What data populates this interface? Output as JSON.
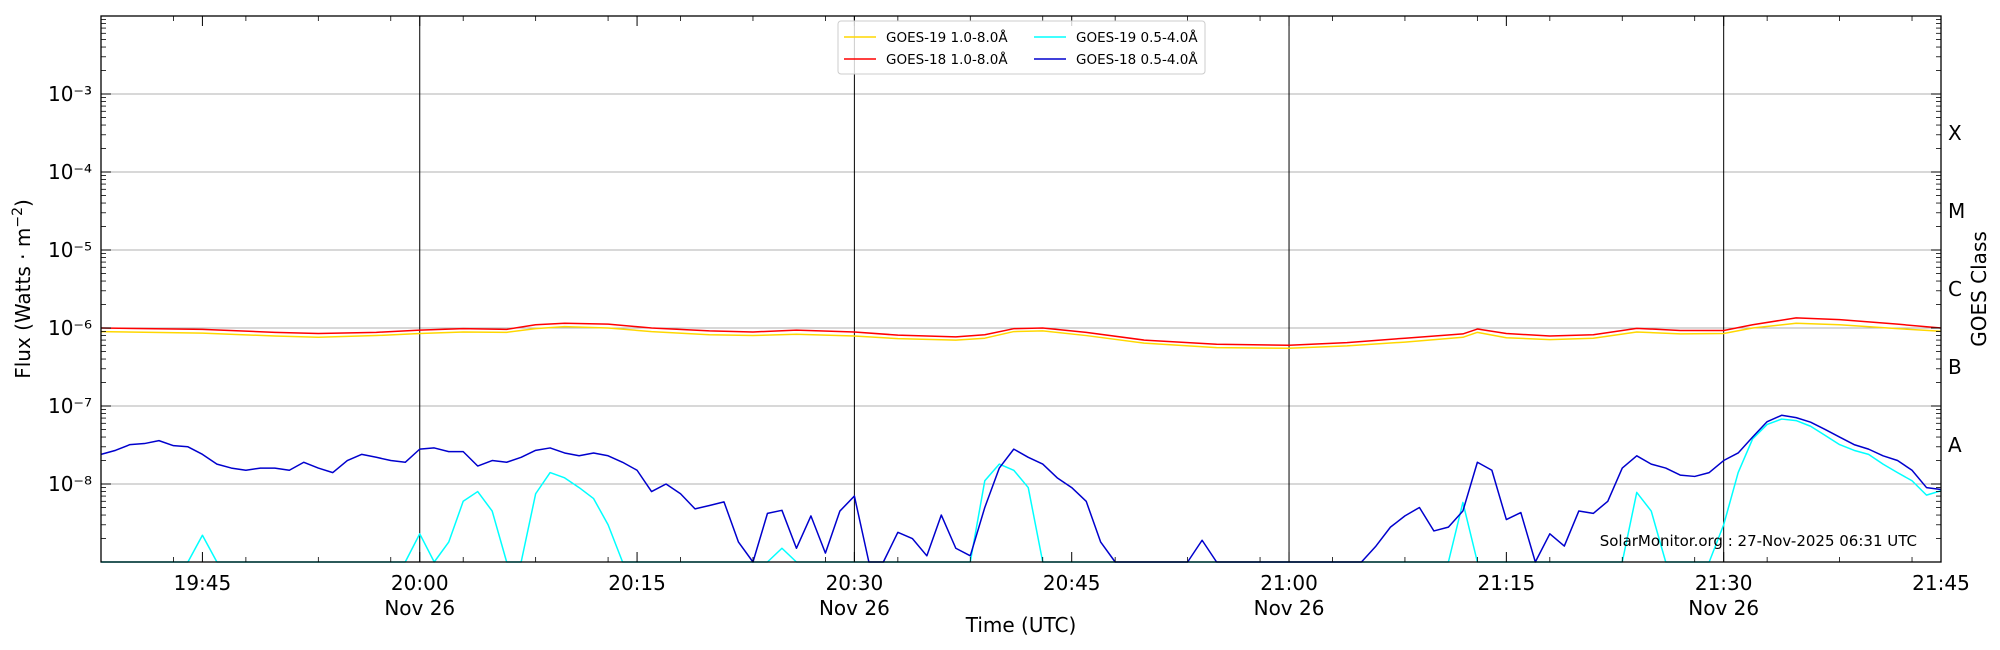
{
  "chart_data": {
    "type": "line",
    "ylabel": "Flux (Watts · m",
    "ylabel_sup": "−2",
    "ylabel_end": ")",
    "xlabel": "Time (UTC)",
    "right_label": "GOES Class",
    "yscale": "log",
    "ylim_exp": [
      -9,
      -2
    ],
    "ytick_exponents": [
      -8,
      -7,
      -6,
      -5,
      -4,
      -3
    ],
    "xlim_minutes": [
      "19:38",
      "21:45"
    ],
    "xticks": [
      {
        "t": "19:45",
        "label": "19:45",
        "date": ""
      },
      {
        "t": "20:00",
        "label": "20:00",
        "date": "Nov 26"
      },
      {
        "t": "20:15",
        "label": "20:15",
        "date": ""
      },
      {
        "t": "20:30",
        "label": "20:30",
        "date": "Nov 26"
      },
      {
        "t": "20:45",
        "label": "20:45",
        "date": ""
      },
      {
        "t": "21:00",
        "label": "21:00",
        "date": "Nov 26"
      },
      {
        "t": "21:15",
        "label": "21:15",
        "date": ""
      },
      {
        "t": "21:30",
        "label": "21:30",
        "date": "Nov 26"
      },
      {
        "t": "21:45",
        "label": "21:45",
        "date": ""
      }
    ],
    "vlines": [
      "20:00",
      "20:30",
      "21:00",
      "21:30"
    ],
    "grid": "horizontal",
    "goes_classes": [
      {
        "label": "A",
        "exp": -8
      },
      {
        "label": "B",
        "exp": -7
      },
      {
        "label": "C",
        "exp": -6
      },
      {
        "label": "M",
        "exp": -5
      },
      {
        "label": "X",
        "exp": -4
      }
    ],
    "legend_placement": "top-center",
    "legend_prefix": [
      "GOES-19 1.0-8.0",
      "GOES-18 1.0-8.0",
      "GOES-19 0.5-4.0",
      "GOES-18 0.5-4.0"
    ],
    "angstrom": "Å",
    "watermark": "SolarMonitor.org : 27-Nov-2025 06:31 UTC",
    "series": [
      {
        "name": "GOES-19 1.0-8.0Å",
        "color": "#ffd700",
        "points": [
          [
            "19:38",
            9e-07
          ],
          [
            "19:45",
            8.6e-07
          ],
          [
            "19:50",
            7.9e-07
          ],
          [
            "19:53",
            7.6e-07
          ],
          [
            "19:57",
            8e-07
          ],
          [
            "20:00",
            8.5e-07
          ],
          [
            "20:03",
            8.9e-07
          ],
          [
            "20:06",
            8.8e-07
          ],
          [
            "20:08",
            9.8e-07
          ],
          [
            "20:10",
            1.04e-06
          ],
          [
            "20:13",
            1e-06
          ],
          [
            "20:16",
            9e-07
          ],
          [
            "20:20",
            8.2e-07
          ],
          [
            "20:23",
            8e-07
          ],
          [
            "20:26",
            8.3e-07
          ],
          [
            "20:30",
            7.9e-07
          ],
          [
            "20:33",
            7.3e-07
          ],
          [
            "20:37",
            7e-07
          ],
          [
            "20:39",
            7.4e-07
          ],
          [
            "20:41",
            9e-07
          ],
          [
            "20:43",
            9.2e-07
          ],
          [
            "20:46",
            8e-07
          ],
          [
            "20:50",
            6.4e-07
          ],
          [
            "20:55",
            5.6e-07
          ],
          [
            "21:00",
            5.5e-07
          ],
          [
            "21:04",
            5.9e-07
          ],
          [
            "21:08",
            6.6e-07
          ],
          [
            "21:12",
            7.6e-07
          ],
          [
            "21:13",
            8.8e-07
          ],
          [
            "21:15",
            7.5e-07
          ],
          [
            "21:18",
            7.1e-07
          ],
          [
            "21:21",
            7.4e-07
          ],
          [
            "21:24",
            8.9e-07
          ],
          [
            "21:27",
            8.4e-07
          ],
          [
            "21:30",
            8.5e-07
          ],
          [
            "21:32",
            1e-06
          ],
          [
            "21:35",
            1.15e-06
          ],
          [
            "21:38",
            1.1e-06
          ],
          [
            "21:42",
            9.8e-07
          ],
          [
            "21:45",
            9.1e-07
          ]
        ]
      },
      {
        "name": "GOES-18 1.0-8.0Å",
        "color": "#ff0000",
        "points": [
          [
            "19:38",
            1e-06
          ],
          [
            "19:45",
            9.6e-07
          ],
          [
            "19:50",
            8.8e-07
          ],
          [
            "19:53",
            8.5e-07
          ],
          [
            "19:57",
            8.8e-07
          ],
          [
            "20:00",
            9.4e-07
          ],
          [
            "20:03",
            9.8e-07
          ],
          [
            "20:06",
            9.6e-07
          ],
          [
            "20:08",
            1.1e-06
          ],
          [
            "20:10",
            1.15e-06
          ],
          [
            "20:13",
            1.12e-06
          ],
          [
            "20:16",
            1e-06
          ],
          [
            "20:20",
            9.2e-07
          ],
          [
            "20:23",
            8.9e-07
          ],
          [
            "20:26",
            9.4e-07
          ],
          [
            "20:30",
            8.9e-07
          ],
          [
            "20:33",
            8.1e-07
          ],
          [
            "20:37",
            7.7e-07
          ],
          [
            "20:39",
            8.2e-07
          ],
          [
            "20:41",
            9.8e-07
          ],
          [
            "20:43",
            1e-06
          ],
          [
            "20:46",
            8.8e-07
          ],
          [
            "20:50",
            7e-07
          ],
          [
            "20:55",
            6.2e-07
          ],
          [
            "21:00",
            6e-07
          ],
          [
            "21:04",
            6.5e-07
          ],
          [
            "21:08",
            7.4e-07
          ],
          [
            "21:12",
            8.4e-07
          ],
          [
            "21:13",
            9.7e-07
          ],
          [
            "21:15",
            8.5e-07
          ],
          [
            "21:18",
            7.9e-07
          ],
          [
            "21:21",
            8.2e-07
          ],
          [
            "21:24",
            9.9e-07
          ],
          [
            "21:27",
            9.3e-07
          ],
          [
            "21:30",
            9.3e-07
          ],
          [
            "21:32",
            1.1e-06
          ],
          [
            "21:35",
            1.35e-06
          ],
          [
            "21:38",
            1.28e-06
          ],
          [
            "21:42",
            1.12e-06
          ],
          [
            "21:45",
            1e-06
          ]
        ]
      },
      {
        "name": "GOES-19 0.5-4.0Å",
        "color": "#00ffff",
        "points": [
          [
            "19:38",
            1e-09
          ],
          [
            "19:44",
            1e-09
          ],
          [
            "19:45",
            2.2e-09
          ],
          [
            "19:46",
            1e-09
          ],
          [
            "19:59",
            1e-09
          ],
          [
            "20:00",
            2.3e-09
          ],
          [
            "20:01",
            1e-09
          ],
          [
            "20:02",
            1.8e-09
          ],
          [
            "20:03",
            6e-09
          ],
          [
            "20:04",
            8e-09
          ],
          [
            "20:05",
            4.5e-09
          ],
          [
            "20:06",
            1e-09
          ],
          [
            "20:07",
            1e-09
          ],
          [
            "20:08",
            7.5e-09
          ],
          [
            "20:09",
            1.4e-08
          ],
          [
            "20:10",
            1.2e-08
          ],
          [
            "20:11",
            9e-09
          ],
          [
            "20:12",
            6.5e-09
          ],
          [
            "20:13",
            3e-09
          ],
          [
            "20:14",
            1e-09
          ],
          [
            "20:24",
            1e-09
          ],
          [
            "20:25",
            1.5e-09
          ],
          [
            "20:26",
            1e-09
          ],
          [
            "20:38",
            1e-09
          ],
          [
            "20:39",
            1.1e-08
          ],
          [
            "20:40",
            1.8e-08
          ],
          [
            "20:41",
            1.5e-08
          ],
          [
            "20:42",
            9e-09
          ],
          [
            "20:43",
            1e-09
          ],
          [
            "21:11",
            1e-09
          ],
          [
            "21:12",
            5.8e-09
          ],
          [
            "21:13",
            1e-09
          ],
          [
            "21:23",
            1e-09
          ],
          [
            "21:24",
            7.8e-09
          ],
          [
            "21:25",
            4.5e-09
          ],
          [
            "21:26",
            1e-09
          ],
          [
            "21:29",
            1e-09
          ],
          [
            "21:30",
            3e-09
          ],
          [
            "21:31",
            1.4e-08
          ],
          [
            "21:32",
            3.8e-08
          ],
          [
            "21:33",
            5.8e-08
          ],
          [
            "21:34",
            6.8e-08
          ],
          [
            "21:35",
            6.5e-08
          ],
          [
            "21:36",
            5.5e-08
          ],
          [
            "21:37",
            4.2e-08
          ],
          [
            "21:38",
            3.2e-08
          ],
          [
            "21:39",
            2.7e-08
          ],
          [
            "21:40",
            2.4e-08
          ],
          [
            "21:41",
            1.8e-08
          ],
          [
            "21:42",
            1.4e-08
          ],
          [
            "21:43",
            1.1e-08
          ],
          [
            "21:44",
            7.2e-09
          ],
          [
            "21:45",
            8.2e-09
          ]
        ]
      },
      {
        "name": "GOES-18 0.5-4.0Å",
        "color": "#0000cd",
        "points": [
          [
            "19:38",
            2.4e-08
          ],
          [
            "19:39",
            2.7e-08
          ],
          [
            "19:40",
            3.2e-08
          ],
          [
            "19:41",
            3.3e-08
          ],
          [
            "19:42",
            3.6e-08
          ],
          [
            "19:43",
            3.1e-08
          ],
          [
            "19:44",
            3e-08
          ],
          [
            "19:45",
            2.4e-08
          ],
          [
            "19:46",
            1.8e-08
          ],
          [
            "19:47",
            1.6e-08
          ],
          [
            "19:48",
            1.5e-08
          ],
          [
            "19:49",
            1.6e-08
          ],
          [
            "19:50",
            1.6e-08
          ],
          [
            "19:51",
            1.5e-08
          ],
          [
            "19:52",
            1.9e-08
          ],
          [
            "19:53",
            1.6e-08
          ],
          [
            "19:54",
            1.4e-08
          ],
          [
            "19:55",
            2e-08
          ],
          [
            "19:56",
            2.4e-08
          ],
          [
            "19:57",
            2.2e-08
          ],
          [
            "19:58",
            2e-08
          ],
          [
            "19:59",
            1.9e-08
          ],
          [
            "20:00",
            2.8e-08
          ],
          [
            "20:01",
            2.9e-08
          ],
          [
            "20:02",
            2.6e-08
          ],
          [
            "20:03",
            2.6e-08
          ],
          [
            "20:04",
            1.7e-08
          ],
          [
            "20:05",
            2e-08
          ],
          [
            "20:06",
            1.9e-08
          ],
          [
            "20:07",
            2.2e-08
          ],
          [
            "20:08",
            2.7e-08
          ],
          [
            "20:09",
            2.9e-08
          ],
          [
            "20:10",
            2.5e-08
          ],
          [
            "20:11",
            2.3e-08
          ],
          [
            "20:12",
            2.5e-08
          ],
          [
            "20:13",
            2.3e-08
          ],
          [
            "20:14",
            1.9e-08
          ],
          [
            "20:15",
            1.5e-08
          ],
          [
            "20:16",
            8e-09
          ],
          [
            "20:17",
            1e-08
          ],
          [
            "20:18",
            7.5e-09
          ],
          [
            "20:19",
            4.8e-09
          ],
          [
            "20:20",
            5.3e-09
          ],
          [
            "20:21",
            5.9e-09
          ],
          [
            "20:22",
            1.8e-09
          ],
          [
            "20:23",
            1e-09
          ],
          [
            "20:24",
            4.2e-09
          ],
          [
            "20:25",
            4.6e-09
          ],
          [
            "20:26",
            1.5e-09
          ],
          [
            "20:27",
            3.9e-09
          ],
          [
            "20:28",
            1.3e-09
          ],
          [
            "20:29",
            4.5e-09
          ],
          [
            "20:30",
            7e-09
          ],
          [
            "20:31",
            1e-09
          ],
          [
            "20:32",
            1e-09
          ],
          [
            "20:33",
            2.4e-09
          ],
          [
            "20:34",
            2e-09
          ],
          [
            "20:35",
            1.2e-09
          ],
          [
            "20:36",
            4e-09
          ],
          [
            "20:37",
            1.5e-09
          ],
          [
            "20:38",
            1.2e-09
          ],
          [
            "20:39",
            5e-09
          ],
          [
            "20:40",
            1.6e-08
          ],
          [
            "20:41",
            2.8e-08
          ],
          [
            "20:42",
            2.2e-08
          ],
          [
            "20:43",
            1.8e-08
          ],
          [
            "20:44",
            1.2e-08
          ],
          [
            "20:45",
            9e-09
          ],
          [
            "20:46",
            6e-09
          ],
          [
            "20:47",
            1.8e-09
          ],
          [
            "20:48",
            1e-09
          ],
          [
            "20:53",
            1e-09
          ],
          [
            "20:54",
            1.9e-09
          ],
          [
            "20:55",
            1e-09
          ],
          [
            "21:05",
            1e-09
          ],
          [
            "21:06",
            1.6e-09
          ],
          [
            "21:07",
            2.8e-09
          ],
          [
            "21:08",
            3.9e-09
          ],
          [
            "21:09",
            5e-09
          ],
          [
            "21:10",
            2.5e-09
          ],
          [
            "21:11",
            2.8e-09
          ],
          [
            "21:12",
            4.5e-09
          ],
          [
            "21:13",
            1.9e-08
          ],
          [
            "21:14",
            1.5e-08
          ],
          [
            "21:15",
            3.5e-09
          ],
          [
            "21:16",
            4.3e-09
          ],
          [
            "21:17",
            1e-09
          ],
          [
            "21:18",
            2.3e-09
          ],
          [
            "21:19",
            1.6e-09
          ],
          [
            "21:20",
            4.5e-09
          ],
          [
            "21:21",
            4.2e-09
          ],
          [
            "21:22",
            6e-09
          ],
          [
            "21:23",
            1.6e-08
          ],
          [
            "21:24",
            2.3e-08
          ],
          [
            "21:25",
            1.8e-08
          ],
          [
            "21:26",
            1.6e-08
          ],
          [
            "21:27",
            1.3e-08
          ],
          [
            "21:28",
            1.25e-08
          ],
          [
            "21:29",
            1.4e-08
          ],
          [
            "21:30",
            2e-08
          ],
          [
            "21:31",
            2.5e-08
          ],
          [
            "21:32",
            4e-08
          ],
          [
            "21:33",
            6.3e-08
          ],
          [
            "21:34",
            7.6e-08
          ],
          [
            "21:35",
            7.1e-08
          ],
          [
            "21:36",
            6.2e-08
          ],
          [
            "21:37",
            5e-08
          ],
          [
            "21:38",
            4e-08
          ],
          [
            "21:39",
            3.2e-08
          ],
          [
            "21:40",
            2.8e-08
          ],
          [
            "21:41",
            2.3e-08
          ],
          [
            "21:42",
            2e-08
          ],
          [
            "21:43",
            1.5e-08
          ],
          [
            "21:44",
            9e-09
          ],
          [
            "21:45",
            8.5e-09
          ]
        ]
      }
    ]
  }
}
